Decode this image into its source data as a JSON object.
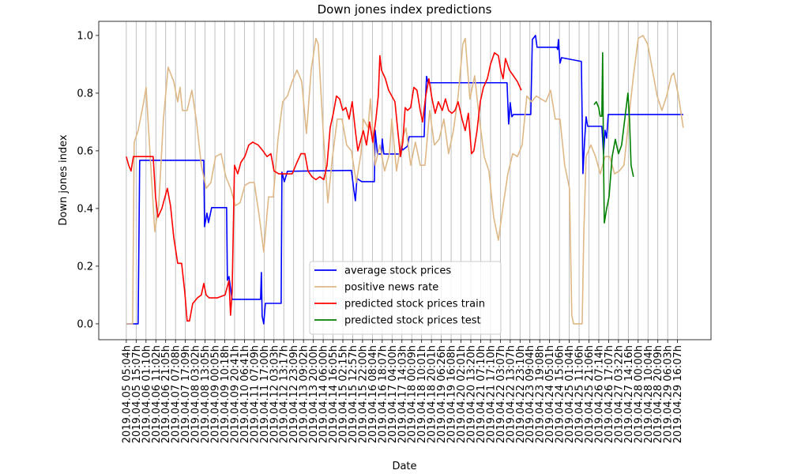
{
  "chart_data": {
    "type": "line",
    "title": "Down jones index predictions",
    "x_label": "Date",
    "y_label": "Down jones index",
    "xlim": [
      -2.8,
      59.4
    ],
    "ylim": [
      -0.055,
      1.049
    ],
    "yticks": [
      {
        "value": 0,
        "label": "0.0"
      },
      0.2,
      0.4,
      0.6,
      0.8,
      {
        "value": 1,
        "label": "1.0"
      }
    ],
    "xticks": [
      {
        "value": 0,
        "label": "2019.04.05 05:04h"
      },
      {
        "value": 1,
        "label": "2019.04.05 15:07h"
      },
      {
        "value": 2,
        "label": "2019.04.06 01:10h"
      },
      {
        "value": 3,
        "label": "2019.04.06 11:02h"
      },
      {
        "value": 4,
        "label": "2019.04.06 21:05h"
      },
      {
        "value": 5,
        "label": "2019.04.07 07:08h"
      },
      {
        "value": 6,
        "label": "2019.04.07 17:09h"
      },
      {
        "value": 7,
        "label": "2019.04.08 03:02h"
      },
      {
        "value": 8,
        "label": "2019.04.08 13:05h"
      },
      {
        "value": 9,
        "label": "2019.04.09 00:05h"
      },
      {
        "value": 10,
        "label": "2019.04.09 10:18h"
      },
      {
        "value": 11,
        "label": "2019.04.09 20:41h"
      },
      {
        "value": 12,
        "label": "2019.04.10 06:41h"
      },
      {
        "value": 13,
        "label": "2019.04.11 07:09h"
      },
      {
        "value": 14,
        "label": "2019.04.11 17:00h"
      },
      {
        "value": 15,
        "label": "2019.04.12 03:03h"
      },
      {
        "value": 16,
        "label": "2019.04.12 13:17h"
      },
      {
        "value": 17,
        "label": "2019.04.12 23:09h"
      },
      {
        "value": 18,
        "label": "2019.04.13 09:02h"
      },
      {
        "value": 19,
        "label": "2019.04.13 20:00h"
      },
      {
        "value": 20,
        "label": "2019.04.14 06:00h"
      },
      {
        "value": 21,
        "label": "2019.04.14 16:05h"
      },
      {
        "value": 22,
        "label": "2019.04.15 02:15h"
      },
      {
        "value": 23,
        "label": "2019.04.15 12:57h"
      },
      {
        "value": 24,
        "label": "2019.04.15 22:00h"
      },
      {
        "value": 25,
        "label": "2019.04.16 08:04h"
      },
      {
        "value": 26,
        "label": "2019.04.16 18:07h"
      },
      {
        "value": 27,
        "label": "2019.04.17 04:00h"
      },
      {
        "value": 28,
        "label": "2019.04.17 14:03h"
      },
      {
        "value": 29,
        "label": "2019.04.18 00:09h"
      },
      {
        "value": 30,
        "label": "2019.04.18 10:01h"
      },
      {
        "value": 31,
        "label": "2019.04.18 20:01h"
      },
      {
        "value": 32,
        "label": "2019.04.19 06:26h"
      },
      {
        "value": 33,
        "label": "2019.04.19 16:08h"
      },
      {
        "value": 34,
        "label": "2019.04.20 02:01h"
      },
      {
        "value": 35,
        "label": "2019.04.20 13:20h"
      },
      {
        "value": 36,
        "label": "2019.04.21 07:10h"
      },
      {
        "value": 37,
        "label": "2019.04.21 17:10h"
      },
      {
        "value": 38,
        "label": "2019.04.22 03:07h"
      },
      {
        "value": 39,
        "label": "2019.04.22 13:07h"
      },
      {
        "value": 40,
        "label": "2019.04.22 23:10h"
      },
      {
        "value": 41,
        "label": "2019.04.23 09:04h"
      },
      {
        "value": 42,
        "label": "2019.04.23 19:08h"
      },
      {
        "value": 43,
        "label": "2019.04.24 05:01h"
      },
      {
        "value": 44,
        "label": "2019.04.24 15:06h"
      },
      {
        "value": 45,
        "label": "2019.04.25 01:04h"
      },
      {
        "value": 46,
        "label": "2019.04.25 11:06h"
      },
      {
        "value": 47,
        "label": "2019.04.25 21:06h"
      },
      {
        "value": 48,
        "label": "2019.04.26 07:14h"
      },
      {
        "value": 49,
        "label": "2019.04.26 17:07h"
      },
      {
        "value": 50,
        "label": "2019.04.27 03:22h"
      },
      {
        "value": 51,
        "label": "2019.04.27 14:16h"
      },
      {
        "value": 52,
        "label": "2019.04.28 00:00h"
      },
      {
        "value": 53,
        "label": "2019.04.28 10:04h"
      },
      {
        "value": 54,
        "label": "2019.04.28 20:09h"
      },
      {
        "value": 55,
        "label": "2019.04.29 06:03h"
      },
      {
        "value": 56,
        "label": "2019.04.29 16:07h"
      }
    ],
    "grid": "x",
    "legend": "lower center",
    "series": [
      {
        "name": "average stock prices",
        "color": "#0000ff",
        "x": [
          0,
          1.2,
          1.36,
          7.87,
          7.95,
          8.19,
          8.35,
          8.67,
          10.19,
          10.27,
          10.43,
          10.59,
          10.75,
          13.64,
          13.72,
          13.8,
          13.96,
          14.13,
          15.73,
          15.81,
          16.05,
          16.37,
          22.87,
          23.11,
          23.27,
          23.43,
          23.92,
          25.2,
          25.28,
          25.52,
          25.92,
          26.0,
          26.16,
          27.77,
          27.93,
          28.09,
          28.57,
          28.73,
          30.26,
          30.34,
          30.5,
          30.66,
          38.68,
          38.84,
          39.0,
          39.17,
          39.33,
          41.09,
          41.25,
          41.57,
          41.73,
          43.74,
          43.82,
          43.9,
          44.06,
          44.22,
          46.23,
          46.39,
          46.55,
          46.71,
          46.87,
          48.31,
          48.48,
          48.64,
          48.8,
          48.96,
          56.58
        ],
        "values": [
          0,
          0,
          0.567,
          0.567,
          0.337,
          0.384,
          0.351,
          0.403,
          0.403,
          0.151,
          0.164,
          0.123,
          0.085,
          0.085,
          0.178,
          0.027,
          0,
          0.071,
          0.071,
          0.526,
          0.493,
          0.529,
          0.532,
          0.466,
          0.427,
          0.504,
          0.493,
          0.493,
          0.671,
          0.589,
          0.589,
          0.641,
          0.589,
          0.589,
          0.616,
          0.603,
          0.616,
          0.649,
          0.649,
          0.732,
          0.858,
          0.836,
          0.836,
          0.693,
          0.767,
          0.718,
          0.726,
          0.726,
          0.986,
          1.0,
          0.959,
          0.959,
          0.951,
          0.986,
          0.904,
          0.923,
          0.91,
          0.521,
          0.63,
          0.718,
          0.685,
          0.685,
          0.589,
          0.671,
          0.644,
          0.726,
          0.726
        ]
      },
      {
        "name": "positive news rate",
        "color": "#deb887",
        "x": [
          0,
          0.64,
          0.8,
          1.2,
          1.77,
          2.01,
          2.41,
          2.89,
          3.29,
          3.77,
          4.25,
          4.82,
          5.22,
          5.46,
          5.7,
          6.18,
          6.66,
          7.14,
          7.62,
          8.11,
          8.59,
          9.07,
          9.63,
          10.11,
          10.59,
          11.08,
          11.56,
          12.04,
          12.52,
          13.0,
          13.48,
          13.96,
          14.45,
          14.93,
          15.41,
          15.89,
          16.37,
          16.85,
          17.34,
          17.82,
          18.3,
          18.78,
          19.26,
          19.5,
          19.98,
          20.47,
          20.95,
          21.43,
          21.91,
          22.39,
          22.87,
          23.36,
          23.84,
          24.08,
          24.56,
          24.8,
          25.28,
          25.76,
          26.24,
          26.73,
          26.97,
          27.45,
          27.93,
          28.41,
          28.89,
          29.37,
          29.86,
          30.34,
          30.82,
          31.3,
          31.78,
          32.26,
          32.74,
          33.23,
          33.71,
          34.19,
          34.43,
          34.91,
          35.39,
          35.87,
          36.36,
          36.84,
          37.32,
          37.8,
          38.28,
          38.76,
          39.25,
          39.73,
          40.21,
          40.69,
          41.17,
          41.65,
          42.13,
          42.62,
          43.1,
          43.58,
          44.06,
          44.54,
          45.02,
          45.26,
          45.43,
          46.31,
          46.47,
          46.71,
          47.19,
          47.67,
          48.15,
          48.64,
          49.12,
          49.6,
          50.08,
          50.56,
          51.04,
          51.52,
          52.01,
          52.49,
          52.97,
          53.45,
          53.93,
          54.41,
          54.9,
          55.38,
          55.62,
          56.1,
          56.58
        ],
        "values": [
          0,
          0,
          0.63,
          0.67,
          0.77,
          0.82,
          0.59,
          0.32,
          0.41,
          0.71,
          0.89,
          0.84,
          0.77,
          0.82,
          0.74,
          0.74,
          0.81,
          0.7,
          0.55,
          0.47,
          0.49,
          0.58,
          0.59,
          0.51,
          0.47,
          0.41,
          0.42,
          0.48,
          0.49,
          0.49,
          0.38,
          0.25,
          0.44,
          0.44,
          0.64,
          0.77,
          0.79,
          0.84,
          0.88,
          0.84,
          0.66,
          0.88,
          0.99,
          0.97,
          0.68,
          0.42,
          0.58,
          0.71,
          0.71,
          0.62,
          0.6,
          0.49,
          0.59,
          0.71,
          0.68,
          0.78,
          0.55,
          0.62,
          0.53,
          0.59,
          0.71,
          0.53,
          0.63,
          0.68,
          0.55,
          0.63,
          0.55,
          0.55,
          0.74,
          0.62,
          0.64,
          0.71,
          0.59,
          0.67,
          0.79,
          0.97,
          0.99,
          0.78,
          0.86,
          0.71,
          0.58,
          0.53,
          0.37,
          0.29,
          0.41,
          0.52,
          0.59,
          0.58,
          0.62,
          0.79,
          0.77,
          0.79,
          0.78,
          0.77,
          0.81,
          0.71,
          0.71,
          0.55,
          0.47,
          0.03,
          0,
          0,
          0.3,
          0.58,
          0.62,
          0.58,
          0.52,
          0.58,
          0.58,
          0.52,
          0.53,
          0.55,
          0.71,
          0.86,
          0.99,
          1.0,
          0.97,
          0.88,
          0.79,
          0.74,
          0.79,
          0.86,
          0.87,
          0.79,
          0.68
        ]
      },
      {
        "name": "predicted stock prices train",
        "color": "#ff0000",
        "x": [
          0,
          0.24,
          0.48,
          0.72,
          1.2,
          1.61,
          2.01,
          2.41,
          2.73,
          2.97,
          3.21,
          3.61,
          4.17,
          4.49,
          4.82,
          5.22,
          5.62,
          5.94,
          6.18,
          6.42,
          6.74,
          7.22,
          7.62,
          7.87,
          8.11,
          8.43,
          9.23,
          10.03,
          10.43,
          10.59,
          10.75,
          10.99,
          11.32,
          11.64,
          12.04,
          12.44,
          12.84,
          13.4,
          13.88,
          14.29,
          14.69,
          15.01,
          15.49,
          15.89,
          16.37,
          16.85,
          17.34,
          17.74,
          18.14,
          18.46,
          18.86,
          19.26,
          19.66,
          20.06,
          20.39,
          20.71,
          21.03,
          21.35,
          21.67,
          21.99,
          22.31,
          22.63,
          22.95,
          23.27,
          23.52,
          23.76,
          24.08,
          24.4,
          24.72,
          25.04,
          25.36,
          25.6,
          25.76,
          25.92,
          26.32,
          26.65,
          26.97,
          27.29,
          27.61,
          27.85,
          28.09,
          28.33,
          28.57,
          28.89,
          29.21,
          29.53,
          29.86,
          30.1,
          30.42,
          30.74,
          31.06,
          31.38,
          31.7,
          32.1,
          32.42,
          32.74,
          33.07,
          33.39,
          33.71,
          34.11,
          34.43,
          34.75,
          35.07,
          35.31,
          35.63,
          35.96,
          36.28,
          36.68,
          37.0,
          37.4,
          37.8,
          38.04,
          38.28,
          38.52,
          38.92,
          39.33,
          39.73,
          40.13
        ],
        "values": [
          0.58,
          0.55,
          0.53,
          0.58,
          0.58,
          0.58,
          0.58,
          0.58,
          0.58,
          0.44,
          0.37,
          0.4,
          0.47,
          0.41,
          0.3,
          0.21,
          0.21,
          0.11,
          0.01,
          0.01,
          0.07,
          0.09,
          0.1,
          0.14,
          0.1,
          0.09,
          0.09,
          0.1,
          0.15,
          0.03,
          0.11,
          0.55,
          0.52,
          0.56,
          0.58,
          0.62,
          0.63,
          0.62,
          0.6,
          0.58,
          0.59,
          0.53,
          0.52,
          0.52,
          0.52,
          0.52,
          0.56,
          0.59,
          0.59,
          0.53,
          0.51,
          0.5,
          0.51,
          0.5,
          0.55,
          0.68,
          0.73,
          0.79,
          0.78,
          0.74,
          0.75,
          0.71,
          0.77,
          0.67,
          0.6,
          0.63,
          0.67,
          0.62,
          0.7,
          0.63,
          0.71,
          0.79,
          0.93,
          0.88,
          0.85,
          0.81,
          0.79,
          0.77,
          0.66,
          0.58,
          0.63,
          0.75,
          0.74,
          0.75,
          0.82,
          0.81,
          0.74,
          0.7,
          0.79,
          0.85,
          0.78,
          0.73,
          0.77,
          0.74,
          0.78,
          0.74,
          0.73,
          0.74,
          0.77,
          0.71,
          0.67,
          0.73,
          0.59,
          0.6,
          0.67,
          0.77,
          0.82,
          0.85,
          0.9,
          0.94,
          0.93,
          0.88,
          0.85,
          0.92,
          0.88,
          0.86,
          0.84,
          0.81
        ]
      },
      {
        "name": "predicted stock prices test",
        "color": "#008000",
        "x": [
          47.51,
          47.75,
          47.99,
          48.15,
          48.31,
          48.39,
          48.48,
          48.56,
          48.8,
          49.04,
          49.36,
          49.68,
          50.0,
          50.32,
          50.64,
          50.96,
          51.12,
          51.28,
          51.52
        ],
        "values": [
          0.76,
          0.77,
          0.75,
          0.72,
          0.72,
          0.94,
          0.58,
          0.35,
          0.4,
          0.44,
          0.58,
          0.64,
          0.59,
          0.62,
          0.71,
          0.8,
          0.71,
          0.55,
          0.51
        ]
      }
    ]
  }
}
